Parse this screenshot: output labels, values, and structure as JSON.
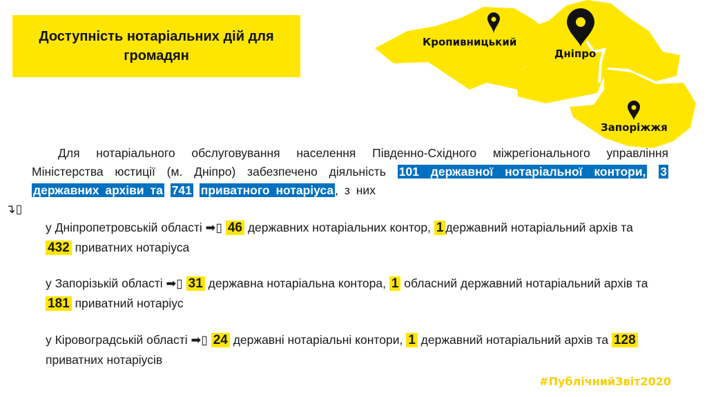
{
  "title": "Доступність нотаріальних дій для громадян",
  "map": {
    "cities": [
      "Кропивницький",
      "Дніпро",
      "Запоріжжя"
    ],
    "color": "#ffe600"
  },
  "intro": {
    "p1": "Для нотаріального обслуговування населення Південно-Східного міжрегіонального управління Міністерства юстиції (м. Дніпро)  забезпечено діяльність",
    "h1": "101 державної нотаріальної контори,",
    "h2": "3",
    "h3": "державних архіви та",
    "h4": "741",
    "h5": "приватного нотаріуса",
    "tail": ", з них",
    "arrow": "↴▯"
  },
  "items": [
    {
      "pre": "у Дніпропетровській області ",
      "arrow": "➡▯ ",
      "n1": "46",
      "t1": " державних нотаріальних контор, ",
      "n2": "1",
      "t2": "державний нотаріальний архів та ",
      "n3": "432",
      "t3": " приватних нотаріуса"
    },
    {
      "pre": "у Запорізькій області ",
      "arrow": "➡▯ ",
      "n1": "31",
      "t1": " державна нотаріальна контора, ",
      "n2": "1",
      "t2": " обласний державний нотаріальний архів та ",
      "n3": "181",
      "t3": " приватний нотаріус"
    },
    {
      "pre": "у Кіровоградській області ",
      "arrow": "➡▯ ",
      "n1": "24",
      "t1": " державні нотаріальні контори, ",
      "n2": "1",
      "t2": " державний нотаріальний архів та ",
      "n3": "128",
      "t3": " приватних нотаріусів"
    }
  ],
  "hashtag": "#ПублічнийЗвіт2020",
  "colors": {
    "yellow": "#ffe600",
    "blue": "#0070c0"
  }
}
